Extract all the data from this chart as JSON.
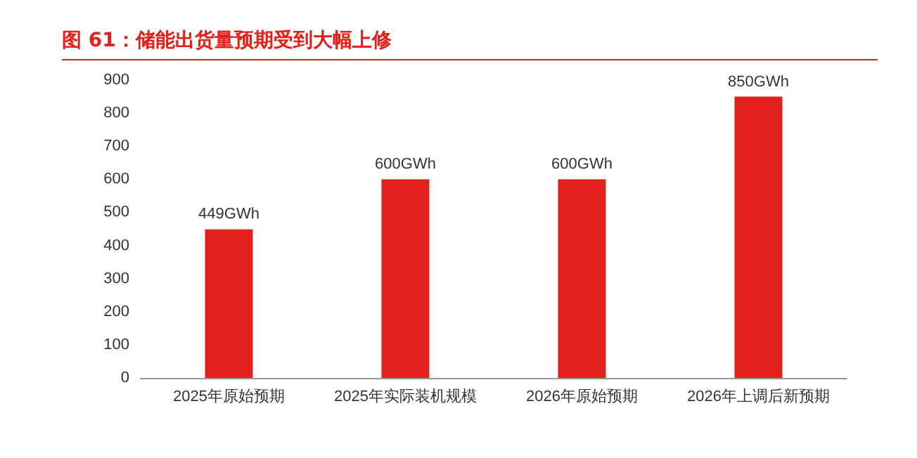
{
  "chart_data": {
    "type": "bar",
    "title": "图 61：储能出货量预期受到大幅上修",
    "categories": [
      "2025年原始预期",
      "2025年实际装机规模",
      "2026年原始预期",
      "2026年上调后新预期"
    ],
    "values": [
      449,
      600,
      600,
      850
    ],
    "color": "#e3211c",
    "value_labels": [
      "449GWh",
      "600GWh",
      "600GWh",
      "850GWh"
    ],
    "ylim": [
      0,
      900
    ],
    "yticks": [
      0,
      100,
      200,
      300,
      400,
      500,
      600,
      700,
      800,
      900
    ],
    "grid": false
  }
}
